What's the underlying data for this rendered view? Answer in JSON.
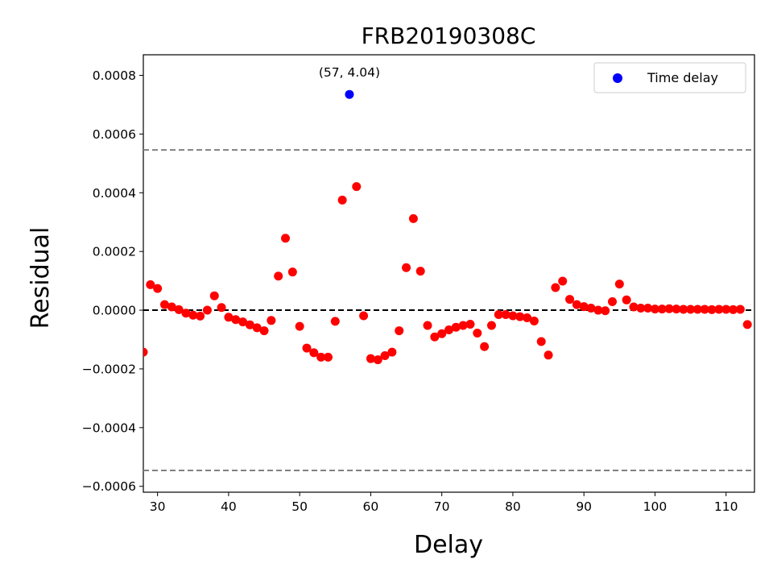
{
  "chart_data": {
    "type": "scatter",
    "title": "FRB20190308C",
    "xlabel": "Delay",
    "ylabel": "Residual",
    "xlim": [
      28,
      114
    ],
    "ylim": [
      -0.00062,
      0.00087
    ],
    "x_ticks": [
      30,
      40,
      50,
      60,
      70,
      80,
      90,
      100,
      110
    ],
    "y_ticks": [
      -0.0006,
      -0.0004,
      -0.0002,
      0.0,
      0.0002,
      0.0004,
      0.0006,
      0.0008
    ],
    "x_tick_labels": [
      "30",
      "40",
      "50",
      "60",
      "70",
      "80",
      "90",
      "100",
      "110"
    ],
    "y_tick_labels": [
      "−0.0006",
      "−0.0004",
      "−0.0002",
      "0.0000",
      "0.0002",
      "0.0004",
      "0.0006",
      "0.0008"
    ],
    "reference_lines": [
      {
        "y": 0.0,
        "style": "dashed",
        "color": "#000000"
      },
      {
        "y": 0.000546,
        "style": "dashed",
        "color": "#808080"
      },
      {
        "y": -0.000546,
        "style": "dashed",
        "color": "#808080"
      }
    ],
    "series": [
      {
        "name": "residuals",
        "color": "#ff0000",
        "x": [
          28,
          29,
          30,
          31,
          32,
          33,
          34,
          35,
          36,
          37,
          38,
          39,
          40,
          41,
          42,
          43,
          44,
          45,
          46,
          47,
          48,
          49,
          50,
          51,
          52,
          53,
          54,
          55,
          56,
          58,
          59,
          60,
          61,
          62,
          63,
          64,
          65,
          66,
          67,
          68,
          69,
          70,
          71,
          72,
          73,
          74,
          75,
          76,
          77,
          78,
          79,
          80,
          81,
          82,
          83,
          84,
          85,
          86,
          87,
          88,
          89,
          90,
          91,
          92,
          93,
          94,
          95,
          96,
          97,
          98,
          99,
          100,
          101,
          102,
          103,
          104,
          105,
          106,
          107,
          108,
          109,
          110,
          111,
          112,
          113
        ],
        "y": [
          -0.000143,
          8.7e-05,
          7.4e-05,
          1.9e-05,
          1.1e-05,
          2e-06,
          -1e-05,
          -1.7e-05,
          -2e-05,
          0.0,
          4.9e-05,
          9e-06,
          -2.4e-05,
          -3.2e-05,
          -4e-05,
          -5e-05,
          -6e-05,
          -7e-05,
          -3.5e-05,
          0.000116,
          0.000245,
          0.00013,
          -5.5e-05,
          -0.000129,
          -0.000145,
          -0.00016,
          -0.00016,
          -3.8e-05,
          0.000375,
          0.000421,
          -1.9e-05,
          -0.000165,
          -0.000169,
          -0.000155,
          -0.000143,
          -7e-05,
          0.000145,
          0.000312,
          0.000133,
          -5.2e-05,
          -9.1e-05,
          -8e-05,
          -6.7e-05,
          -5.8e-05,
          -5.2e-05,
          -4.8e-05,
          -7.8e-05,
          -0.000124,
          -5.2e-05,
          -1.5e-05,
          -1.5e-05,
          -1.9e-05,
          -2.2e-05,
          -2.6e-05,
          -3.7e-05,
          -0.000107,
          -0.000153,
          7.7e-05,
          9.9e-05,
          3.7e-05,
          1.9e-05,
          1.2e-05,
          7e-06,
          0.0,
          -2e-06,
          2.9e-05,
          8.9e-05,
          3.5e-05,
          1.1e-05,
          7e-06,
          7e-06,
          4e-06,
          4e-06,
          5e-06,
          4e-06,
          3e-06,
          3e-06,
          3e-06,
          3e-06,
          2e-06,
          3e-06,
          3e-06,
          2e-06,
          3e-06,
          -4.9e-05
        ]
      },
      {
        "name": "Time delay",
        "color": "#0000ff",
        "x": [
          57
        ],
        "y": [
          0.000735
        ]
      }
    ],
    "annotations": [
      {
        "text": "(57, 4.04)",
        "x": 57,
        "y": 0.000735
      }
    ],
    "legend": {
      "entries": [
        {
          "label": "Time delay",
          "color": "#0000ff"
        }
      ],
      "position": "top-right"
    },
    "grid": false
  }
}
